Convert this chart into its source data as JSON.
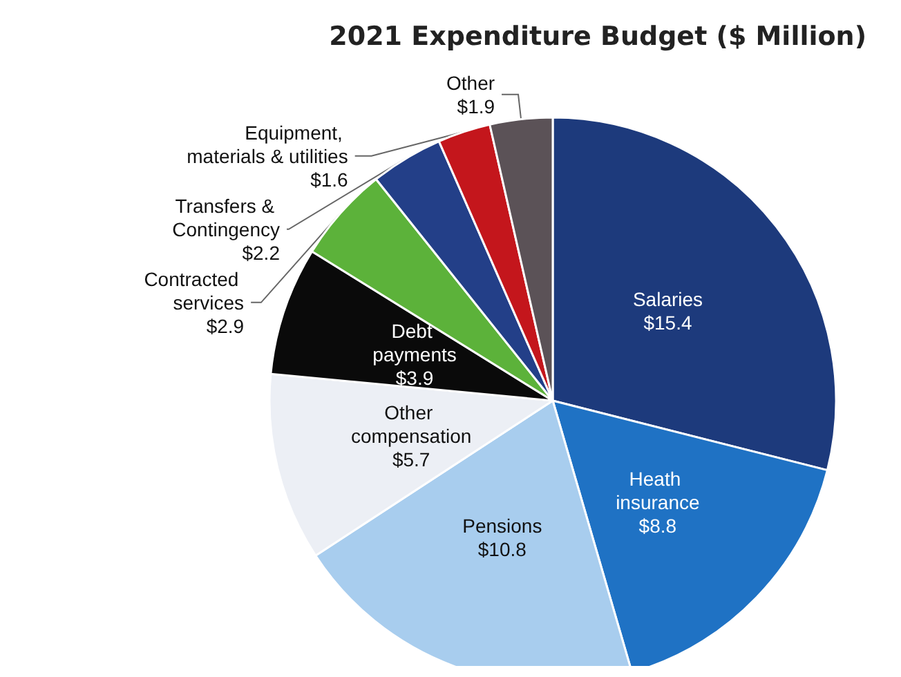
{
  "chart_data": {
    "type": "pie",
    "title": "2021 Expenditure Budget ($ Million)",
    "categories": [
      "Salaries",
      "Heath insurance",
      "Pensions",
      "Other compensation",
      "Debt payments",
      "Contracted services",
      "Transfers & Contingency",
      "Equipment, materials & utilities",
      "Other"
    ],
    "values": [
      15.4,
      8.8,
      10.8,
      5.7,
      3.9,
      2.9,
      2.2,
      1.6,
      1.9
    ],
    "value_labels": [
      "$15.4",
      "$8.8",
      "$10.8",
      "$5.7",
      "$3.9",
      "$2.9",
      "$2.2",
      "$1.6",
      "$1.9"
    ],
    "colors": [
      "#1d3a7c",
      "#1f72c4",
      "#a8cdee",
      "#eceff5",
      "#0a0a0a",
      "#5cb23a",
      "#233f88",
      "#c4161c",
      "#5b5257"
    ],
    "legend": false
  }
}
